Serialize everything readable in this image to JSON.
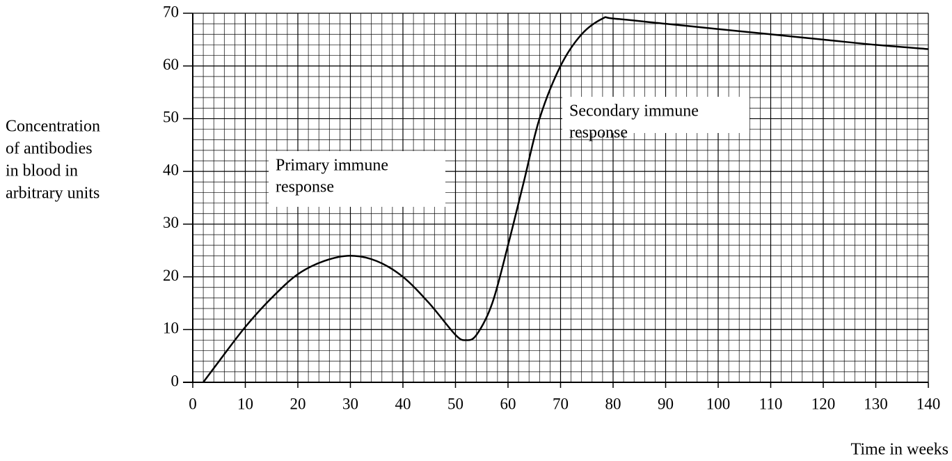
{
  "chart_data": {
    "type": "line",
    "y_axis_label": [
      "Concentration",
      "of antibodies",
      "in blood in",
      "arbitrary units"
    ],
    "x_axis_label": "Time in weeks",
    "x": [
      2,
      5,
      10,
      15,
      20,
      25,
      30,
      35,
      40,
      45,
      50,
      52,
      54,
      57,
      60,
      63,
      66,
      70,
      74,
      78,
      80,
      90,
      100,
      110,
      120,
      130,
      140
    ],
    "series": [
      {
        "color": "#000000",
        "values": [
          0,
          4,
          10.5,
          16,
          20.5,
          23,
          24,
          23,
          20,
          15,
          9,
          8,
          9,
          15,
          26,
          38,
          50,
          60,
          66,
          69,
          69,
          68,
          67,
          66,
          65,
          64,
          63.2
        ]
      }
    ],
    "xlim": [
      0,
      140
    ],
    "xticks": [
      0,
      10,
      20,
      30,
      40,
      50,
      60,
      70,
      80,
      90,
      100,
      110,
      120,
      130,
      140
    ],
    "ylim": [
      0,
      70
    ],
    "yticks": [
      0,
      10,
      20,
      30,
      40,
      50,
      60,
      70
    ],
    "grid": true,
    "minor_grid_step": 2,
    "annotations": [
      {
        "text": [
          "Primary immune",
          "response"
        ]
      },
      {
        "text": [
          "Secondary immune",
          "response"
        ]
      }
    ]
  }
}
